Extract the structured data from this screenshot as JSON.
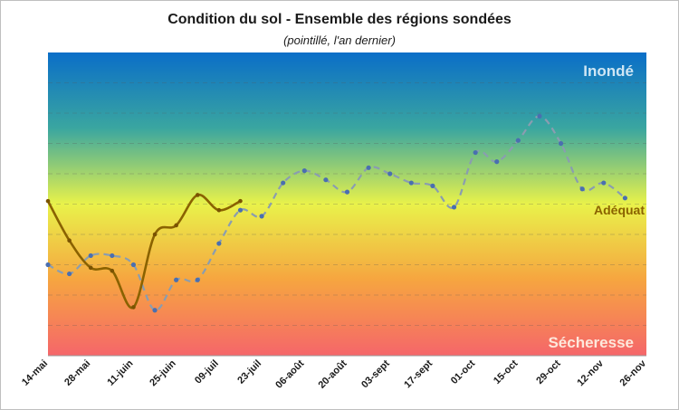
{
  "chart_data": {
    "type": "line",
    "title": "Condition du sol - Ensemble des régions sondées",
    "subtitle": "(pointillé, l'an dernier)",
    "categories": [
      "14-mai",
      "28-mai",
      "11-juin",
      "25-juin",
      "09-juil",
      "23-juil",
      "06-août",
      "20-août",
      "03-sept",
      "17-sept",
      "01-oct",
      "15-oct",
      "29-oct",
      "12-nov",
      "26-nov"
    ],
    "ylim": [
      0,
      100
    ],
    "grid": true,
    "zone_labels": {
      "top": "Inondé",
      "middle": "Adéquat",
      "bottom": "Sécheresse"
    },
    "series": [
      {
        "style": "solid",
        "color": "#8a6200",
        "x": [
          0,
          0.5,
          1,
          1.5,
          2,
          2.5,
          3,
          3.5,
          4,
          4.5
        ],
        "values": [
          51,
          38,
          29,
          28,
          16,
          40,
          43,
          53,
          48,
          51
        ]
      },
      {
        "style": "dashed",
        "color": "#8a9db0",
        "x": [
          0,
          0.5,
          1,
          1.5,
          2,
          2.5,
          3,
          3.5,
          4,
          4.5,
          5,
          5.5,
          6,
          6.5,
          7,
          7.5,
          8,
          8.5,
          9,
          9.5,
          10,
          10.5,
          11,
          11.5,
          12,
          12.5,
          13,
          13.5
        ],
        "values": [
          30,
          27,
          33,
          33,
          30,
          15,
          25,
          25,
          37,
          48,
          46,
          57,
          61,
          58,
          54,
          62,
          60,
          57,
          56,
          49,
          67,
          64,
          71,
          79,
          70,
          55,
          57,
          52
        ]
      }
    ]
  }
}
